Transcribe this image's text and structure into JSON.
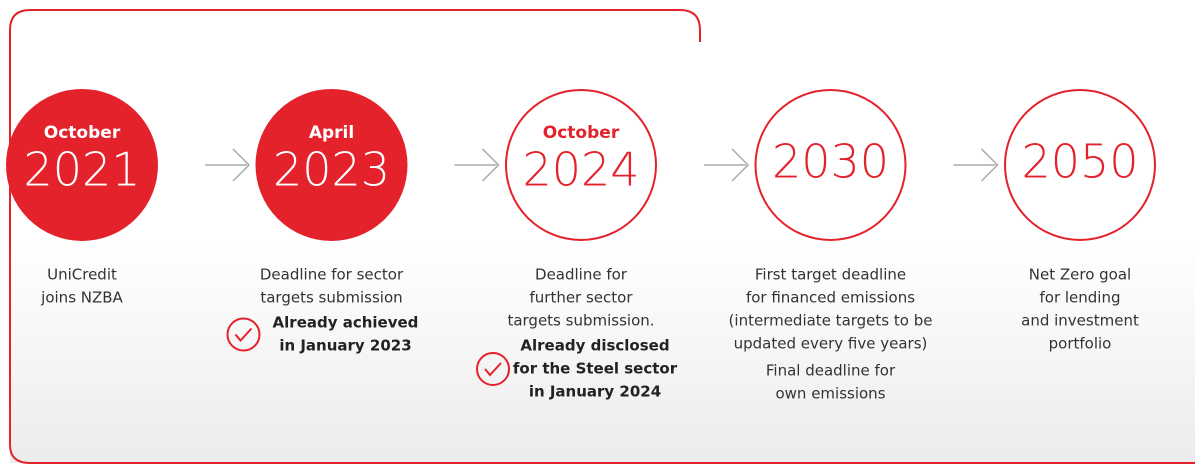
{
  "milestones": [
    {
      "month": "October",
      "year": "2021",
      "filled": true,
      "description": [
        "UniCredit",
        "joins NZBA"
      ]
    },
    {
      "month": "April",
      "year": "2023",
      "filled": true,
      "description": [
        "Deadline for sector",
        "targets submission"
      ],
      "note": [
        "Already achieved",
        "in January 2023"
      ]
    },
    {
      "month": "October",
      "year": "2024",
      "filled": false,
      "description": [
        "Deadline for",
        "further sector",
        "targets submission."
      ],
      "note": [
        "Already disclosed",
        "for the Steel sector",
        "in January 2024"
      ]
    },
    {
      "year": "2030",
      "filled": false,
      "description": [
        "First target deadline",
        "for financed emissions",
        "(intermediate targets to be",
        "updated every five years)"
      ],
      "extra": [
        "Final deadline for",
        "own emissions"
      ]
    },
    {
      "year": "2050",
      "filled": false,
      "description": [
        "Net Zero goal",
        "for lending",
        "and investment",
        "portfolio"
      ]
    }
  ]
}
